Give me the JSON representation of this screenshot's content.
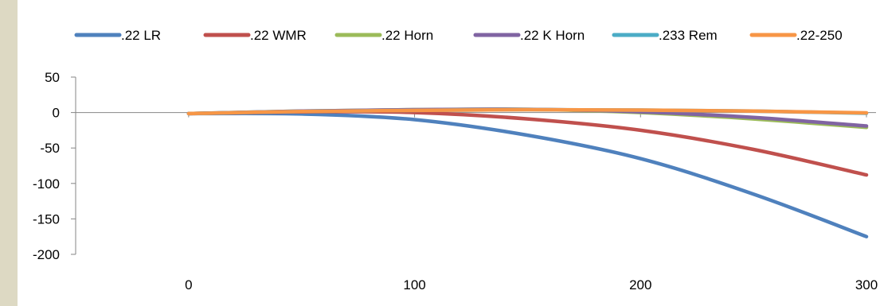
{
  "chart_data": {
    "type": "line",
    "title": "",
    "xlabel": "",
    "ylabel": "",
    "x": [
      0,
      50,
      100,
      150,
      200,
      250,
      300
    ],
    "xlim": [
      -50,
      300
    ],
    "xticks": [
      0,
      100,
      200,
      300
    ],
    "ylim": [
      -200,
      50
    ],
    "yticks": [
      50,
      0,
      -50,
      -100,
      -150,
      -200
    ],
    "grid": false,
    "legend_position": "top",
    "series": [
      {
        "name": ".22 LR",
        "color": "#4f81bd",
        "values": [
          -1.5,
          -2,
          -10,
          -32,
          -65,
          -115,
          -175
        ]
      },
      {
        "name": ".22 WMR",
        "color": "#c0504d",
        "values": [
          -1.5,
          1,
          0,
          -9,
          -25,
          -52,
          -88
        ]
      },
      {
        "name": ".22 Horn",
        "color": "#9bbb59",
        "values": [
          -1.5,
          2,
          4,
          4.5,
          0,
          -9,
          -21
        ]
      },
      {
        "name": ".22 K Horn",
        "color": "#8064a2",
        "values": [
          -1.5,
          2,
          4,
          4.5,
          1,
          -7,
          -19
        ]
      },
      {
        "name": ".233 Rem",
        "color": "#4bacc6",
        "values": [
          -1.5,
          1.5,
          3,
          4,
          3.5,
          2,
          -1
        ]
      },
      {
        "name": ".22-250",
        "color": "#f79646",
        "values": [
          -1.5,
          1.5,
          3,
          4,
          3.5,
          2,
          -0.5
        ]
      }
    ]
  }
}
